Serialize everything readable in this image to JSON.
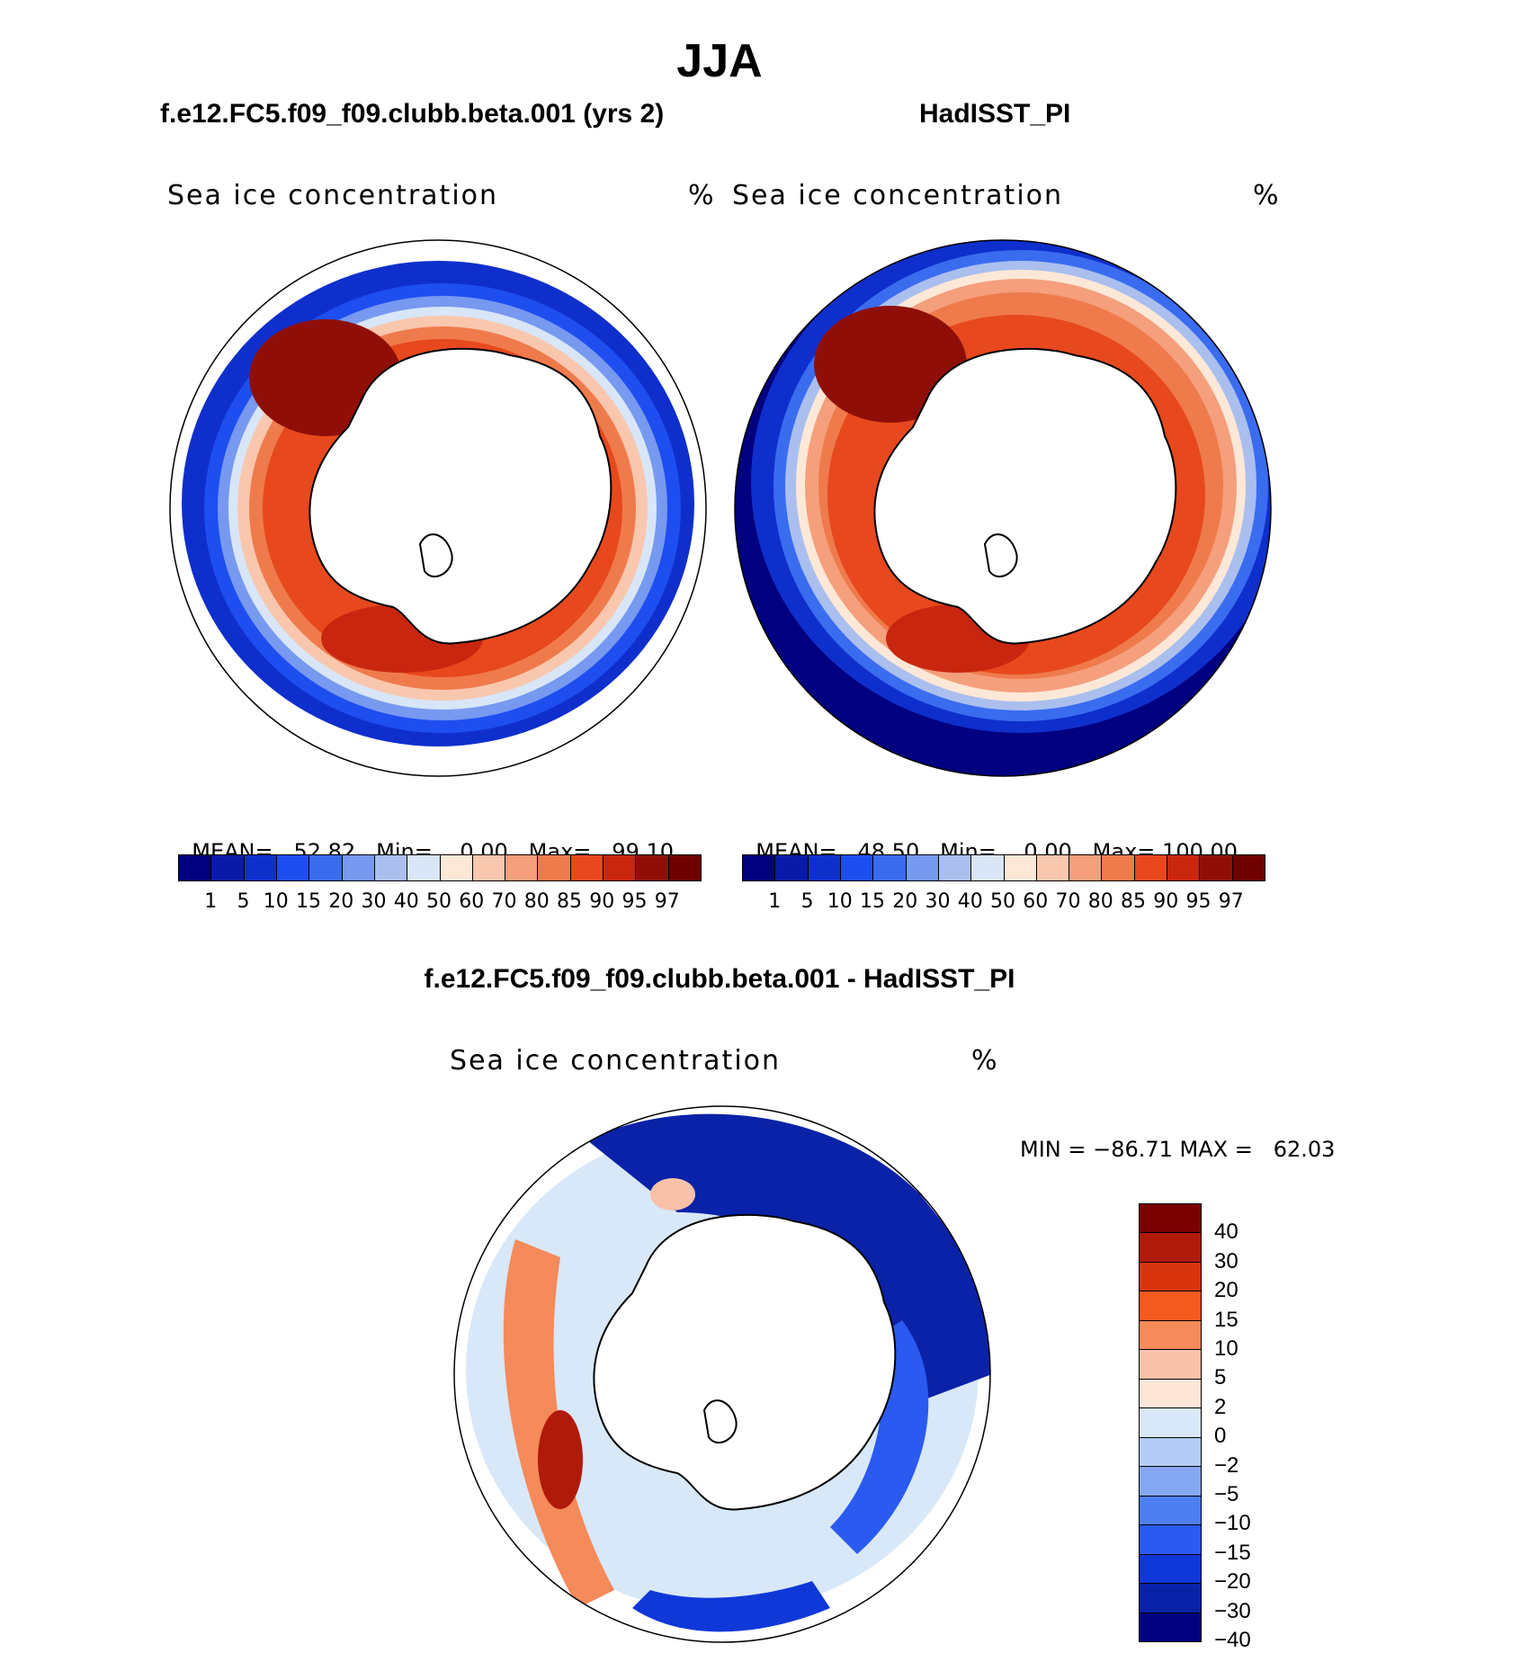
{
  "figure": {
    "title": "JJA",
    "panels": [
      {
        "name": "f.e12.FC5.f09_f09.clubb.beta.001 (yrs 2)",
        "field": "Sea ice concentration",
        "unit": "%",
        "stats": {
          "mean_label": "MEAN=",
          "mean": "52.82",
          "min_label": "Min=",
          "min": "0.00",
          "max_label": "Max=",
          "max": "99.10"
        }
      },
      {
        "name": "HadISST_PI",
        "field": "Sea ice concentration",
        "unit": "%",
        "stats": {
          "mean_label": "MEAN=",
          "mean": "48.50",
          "min_label": "Min=",
          "min": "0.00",
          "max_label": "Max=",
          "max": "100.00"
        }
      }
    ],
    "difference": {
      "name": "f.e12.FC5.f09_f09.clubb.beta.001 - HadISST_PI",
      "field": "Sea ice concentration",
      "unit": "%",
      "minmax": "MIN = −86.71 MAX =   62.03"
    }
  },
  "colorbar_top": {
    "ticks": [
      "1",
      "5",
      "10",
      "15",
      "20",
      "30",
      "40",
      "50",
      "60",
      "70",
      "80",
      "85",
      "90",
      "95",
      "97"
    ],
    "colors": [
      "#000080",
      "#0a1aa8",
      "#0f2fcc",
      "#1e4ef0",
      "#3a6cf0",
      "#7799f0",
      "#aabfee",
      "#d8e6f7",
      "#fde8d8",
      "#f9c7ae",
      "#f59f7d",
      "#ef7b4c",
      "#e8481d",
      "#c9260f",
      "#8f0f08",
      "#6e0000"
    ]
  },
  "colorbar_diff": {
    "ticks": [
      "40",
      "30",
      "20",
      "15",
      "10",
      "5",
      "2",
      "0",
      "−2",
      "−5",
      "−10",
      "−15",
      "−20",
      "−30",
      "−40"
    ],
    "colors": [
      "#7a0000",
      "#b01a08",
      "#d8350e",
      "#f45a20",
      "#f58a5a",
      "#f9c1a8",
      "#fde6d8",
      "#d8e8f8",
      "#b4ccf6",
      "#86a8f2",
      "#4d7ef2",
      "#2a5af0",
      "#1038d8",
      "#0a22a8",
      "#000080"
    ]
  }
}
